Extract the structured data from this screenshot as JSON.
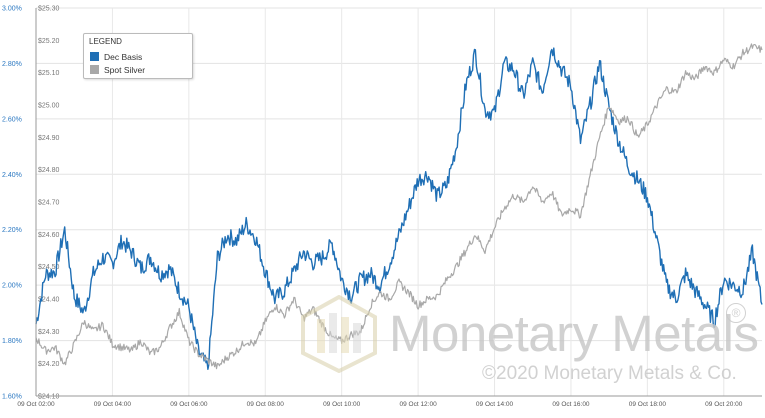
{
  "chart_data": {
    "type": "line",
    "title": "",
    "xlabel": "",
    "ylabel_left": "",
    "ylabel_right": "",
    "x_ticks": [
      "09 Oct 02:00",
      "09 Oct 04:00",
      "09 Oct 06:00",
      "09 Oct 08:00",
      "09 Oct 10:00",
      "09 Oct 12:00",
      "09 Oct 14:00",
      "09 Oct 16:00",
      "09 Oct 18:00",
      "09 Oct 20:00"
    ],
    "y_left_ticks": [
      "3.00%",
      "2.80%",
      "2.60%",
      "2.40%",
      "2.20%",
      "2.00%",
      "1.80%",
      "1.60%"
    ],
    "y_left_range": [
      1.6,
      3.0
    ],
    "y_right_ticks": [
      "$25.30",
      "$25.20",
      "$25.10",
      "$25.00",
      "$24.90",
      "$24.80",
      "$24.70",
      "$24.60",
      "$24.50",
      "$24.40",
      "$24.30",
      "$24.20",
      "$24.10"
    ],
    "y_right_range": [
      24.1,
      25.3
    ],
    "grid": true,
    "legend": {
      "title": "LEGEND",
      "placement": "top-left",
      "entries": [
        "Dec Basis",
        "Spot Silver"
      ]
    },
    "series": [
      {
        "name": "Dec Basis",
        "axis": "left",
        "color": "#1f6fb5",
        "x": [
          "09 Oct 02:00",
          "09 Oct 02:15",
          "09 Oct 02:30",
          "09 Oct 02:45",
          "09 Oct 03:00",
          "09 Oct 03:15",
          "09 Oct 03:30",
          "09 Oct 03:45",
          "09 Oct 04:00",
          "09 Oct 04:15",
          "09 Oct 04:30",
          "09 Oct 04:45",
          "09 Oct 05:00",
          "09 Oct 05:15",
          "09 Oct 05:30",
          "09 Oct 05:45",
          "09 Oct 06:00",
          "09 Oct 06:15",
          "09 Oct 06:30",
          "09 Oct 06:45",
          "09 Oct 07:00",
          "09 Oct 07:15",
          "09 Oct 07:30",
          "09 Oct 07:45",
          "09 Oct 08:00",
          "09 Oct 08:15",
          "09 Oct 08:30",
          "09 Oct 08:45",
          "09 Oct 09:00",
          "09 Oct 09:15",
          "09 Oct 09:30",
          "09 Oct 09:45",
          "09 Oct 10:00",
          "09 Oct 10:15",
          "09 Oct 10:30",
          "09 Oct 10:45",
          "09 Oct 11:00",
          "09 Oct 11:15",
          "09 Oct 11:30",
          "09 Oct 11:45",
          "09 Oct 12:00",
          "09 Oct 12:15",
          "09 Oct 12:30",
          "09 Oct 12:45",
          "09 Oct 13:00",
          "09 Oct 13:15",
          "09 Oct 13:30",
          "09 Oct 13:45",
          "09 Oct 14:00",
          "09 Oct 14:15",
          "09 Oct 14:30",
          "09 Oct 14:45",
          "09 Oct 15:00",
          "09 Oct 15:15",
          "09 Oct 15:30",
          "09 Oct 15:45",
          "09 Oct 16:00",
          "09 Oct 16:15",
          "09 Oct 16:30",
          "09 Oct 16:45",
          "09 Oct 17:00",
          "09 Oct 17:15",
          "09 Oct 17:30",
          "09 Oct 17:45",
          "09 Oct 18:00",
          "09 Oct 18:15",
          "09 Oct 18:30",
          "09 Oct 18:45",
          "09 Oct 19:00",
          "09 Oct 19:15",
          "09 Oct 19:30",
          "09 Oct 19:45",
          "09 Oct 20:00",
          "09 Oct 20:15",
          "09 Oct 20:30",
          "09 Oct 20:45",
          "09 Oct 21:00"
        ],
        "values": [
          1.86,
          2.04,
          2.05,
          2.2,
          1.96,
          1.9,
          2.04,
          2.1,
          2.08,
          2.16,
          2.12,
          2.06,
          2.1,
          2.04,
          2.06,
          1.98,
          1.92,
          1.76,
          1.7,
          2.1,
          2.18,
          2.16,
          2.22,
          2.17,
          2.05,
          1.95,
          1.98,
          2.05,
          2.12,
          2.08,
          2.1,
          2.15,
          2.02,
          1.96,
          2.02,
          2.04,
          2.0,
          2.08,
          2.18,
          2.28,
          2.38,
          2.4,
          2.32,
          2.36,
          2.5,
          2.72,
          2.84,
          2.63,
          2.62,
          2.8,
          2.78,
          2.68,
          2.8,
          2.7,
          2.86,
          2.78,
          2.72,
          2.52,
          2.65,
          2.8,
          2.64,
          2.52,
          2.43,
          2.38,
          2.32,
          2.16,
          2.0,
          1.95,
          2.04,
          1.98,
          1.93,
          1.87,
          2.02,
          2.0,
          1.98,
          2.12,
          1.93
        ]
      },
      {
        "name": "Spot Silver",
        "axis": "right",
        "color": "#a8a8a8",
        "x": [
          "09 Oct 02:00",
          "09 Oct 02:15",
          "09 Oct 02:30",
          "09 Oct 02:45",
          "09 Oct 03:00",
          "09 Oct 03:15",
          "09 Oct 03:30",
          "09 Oct 03:45",
          "09 Oct 04:00",
          "09 Oct 04:15",
          "09 Oct 04:30",
          "09 Oct 04:45",
          "09 Oct 05:00",
          "09 Oct 05:15",
          "09 Oct 05:30",
          "09 Oct 05:45",
          "09 Oct 06:00",
          "09 Oct 06:15",
          "09 Oct 06:30",
          "09 Oct 06:45",
          "09 Oct 07:00",
          "09 Oct 07:15",
          "09 Oct 07:30",
          "09 Oct 07:45",
          "09 Oct 08:00",
          "09 Oct 08:15",
          "09 Oct 08:30",
          "09 Oct 08:45",
          "09 Oct 09:00",
          "09 Oct 09:15",
          "09 Oct 09:30",
          "09 Oct 09:45",
          "09 Oct 10:00",
          "09 Oct 10:15",
          "09 Oct 10:30",
          "09 Oct 10:45",
          "09 Oct 11:00",
          "09 Oct 11:15",
          "09 Oct 11:30",
          "09 Oct 11:45",
          "09 Oct 12:00",
          "09 Oct 12:15",
          "09 Oct 12:30",
          "09 Oct 12:45",
          "09 Oct 13:00",
          "09 Oct 13:15",
          "09 Oct 13:30",
          "09 Oct 13:45",
          "09 Oct 14:00",
          "09 Oct 14:15",
          "09 Oct 14:30",
          "09 Oct 14:45",
          "09 Oct 15:00",
          "09 Oct 15:15",
          "09 Oct 15:30",
          "09 Oct 15:45",
          "09 Oct 16:00",
          "09 Oct 16:15",
          "09 Oct 16:30",
          "09 Oct 16:45",
          "09 Oct 17:00",
          "09 Oct 17:15",
          "09 Oct 17:30",
          "09 Oct 17:45",
          "09 Oct 18:00",
          "09 Oct 18:15",
          "09 Oct 18:30",
          "09 Oct 18:45",
          "09 Oct 19:00",
          "09 Oct 19:15",
          "09 Oct 19:30",
          "09 Oct 19:45",
          "09 Oct 20:00",
          "09 Oct 20:15",
          "09 Oct 20:30",
          "09 Oct 20:45",
          "09 Oct 21:00"
        ],
        "values": [
          24.28,
          24.24,
          24.25,
          24.2,
          24.26,
          24.33,
          24.3,
          24.32,
          24.26,
          24.25,
          24.24,
          24.27,
          24.23,
          24.25,
          24.31,
          24.36,
          24.27,
          24.23,
          24.21,
          24.19,
          24.22,
          24.24,
          24.27,
          24.26,
          24.33,
          24.38,
          24.35,
          24.4,
          24.34,
          24.37,
          24.32,
          24.28,
          24.27,
          24.29,
          24.3,
          24.38,
          24.42,
          24.4,
          24.45,
          24.42,
          24.38,
          24.4,
          24.41,
          24.46,
          24.5,
          24.55,
          24.6,
          24.55,
          24.62,
          24.68,
          24.72,
          24.7,
          24.75,
          24.7,
          24.73,
          24.66,
          24.68,
          24.66,
          24.78,
          24.9,
          25.0,
          24.95,
          24.96,
          24.9,
          24.94,
          25.0,
          25.05,
          25.04,
          25.1,
          25.08,
          25.12,
          25.1,
          25.14,
          25.12,
          25.16,
          25.18,
          25.17
        ]
      }
    ],
    "annotations": []
  },
  "watermark": {
    "name": "Monetary Metals",
    "copyright": "©2020 Monetary Metals & Co.",
    "registered": "®"
  }
}
